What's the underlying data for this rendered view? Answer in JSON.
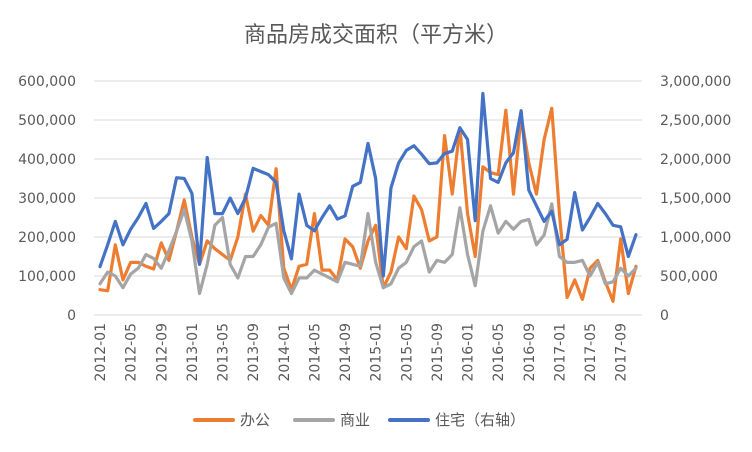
{
  "chart_data": {
    "type": "line",
    "title": "商品房成交面积（平方米）",
    "xlabel": "",
    "ylabel": "",
    "x": [
      "2012-01",
      "2012-02",
      "2012-03",
      "2012-04",
      "2012-05",
      "2012-06",
      "2012-07",
      "2012-08",
      "2012-09",
      "2012-10",
      "2012-11",
      "2012-12",
      "2013-01",
      "2013-02",
      "2013-03",
      "2013-04",
      "2013-05",
      "2013-06",
      "2013-07",
      "2013-08",
      "2013-09",
      "2013-10",
      "2013-11",
      "2013-12",
      "2014-01",
      "2014-02",
      "2014-03",
      "2014-04",
      "2014-05",
      "2014-06",
      "2014-07",
      "2014-08",
      "2014-09",
      "2014-10",
      "2014-11",
      "2014-12",
      "2015-01",
      "2015-02",
      "2015-03",
      "2015-04",
      "2015-05",
      "2015-06",
      "2015-07",
      "2015-08",
      "2015-09",
      "2015-10",
      "2015-11",
      "2015-12",
      "2016-01",
      "2016-02",
      "2016-03",
      "2016-04",
      "2016-05",
      "2016-06",
      "2016-07",
      "2016-08",
      "2016-09",
      "2016-10",
      "2016-11",
      "2016-12",
      "2017-01",
      "2017-02",
      "2017-03",
      "2017-04",
      "2017-05",
      "2017-06",
      "2017-07",
      "2017-08",
      "2017-09",
      "2017-10",
      "2017-11"
    ],
    "x_tick_labels": [
      "2012-01",
      "2012-05",
      "2012-09",
      "2013-01",
      "2013-05",
      "2013-09",
      "2014-01",
      "2014-05",
      "2014-09",
      "2015-01",
      "2015-05",
      "2015-09",
      "2016-01",
      "2016-05",
      "2016-09",
      "2017-01",
      "2017-05",
      "2017-09"
    ],
    "y_left": {
      "ylim": [
        0,
        600000
      ],
      "ticks": [
        "0",
        "100,000",
        "200,000",
        "300,000",
        "400,000",
        "500,000",
        "600,000"
      ]
    },
    "y_right": {
      "ylim": [
        0,
        3000000
      ],
      "ticks": [
        "0",
        "500,000",
        "1,000,000",
        "1,500,000",
        "2,000,000",
        "2,500,000",
        "3,000,000"
      ]
    },
    "legend_position": "bottom",
    "series": [
      {
        "name": "办公",
        "axis": "left",
        "color": "#ED7D31",
        "values": [
          65000,
          62000,
          180000,
          90000,
          135000,
          135000,
          125000,
          118000,
          185000,
          140000,
          215000,
          295000,
          200000,
          130000,
          190000,
          170000,
          155000,
          140000,
          200000,
          310000,
          215000,
          255000,
          230000,
          375000,
          120000,
          65000,
          125000,
          130000,
          260000,
          115000,
          115000,
          90000,
          195000,
          175000,
          120000,
          190000,
          230000,
          70000,
          110000,
          200000,
          170000,
          305000,
          270000,
          190000,
          200000,
          460000,
          310000,
          480000,
          260000,
          150000,
          380000,
          365000,
          360000,
          525000,
          310000,
          510000,
          390000,
          310000,
          450000,
          530000,
          260000,
          45000,
          90000,
          40000,
          120000,
          140000,
          85000,
          35000,
          195000,
          55000,
          125000
        ]
      },
      {
        "name": "商业",
        "axis": "left",
        "color": "#A5A5A5",
        "values": [
          80000,
          110000,
          100000,
          70000,
          105000,
          120000,
          155000,
          145000,
          120000,
          165000,
          215000,
          270000,
          190000,
          55000,
          130000,
          230000,
          250000,
          130000,
          95000,
          150000,
          150000,
          180000,
          225000,
          235000,
          95000,
          55000,
          95000,
          95000,
          115000,
          105000,
          95000,
          85000,
          135000,
          130000,
          125000,
          260000,
          135000,
          70000,
          80000,
          120000,
          135000,
          175000,
          190000,
          110000,
          140000,
          135000,
          155000,
          275000,
          155000,
          75000,
          215000,
          280000,
          210000,
          240000,
          220000,
          240000,
          245000,
          180000,
          205000,
          285000,
          150000,
          135000,
          135000,
          140000,
          100000,
          135000,
          80000,
          85000,
          120000,
          100000,
          120000
        ]
      },
      {
        "name": "住宅（右轴）",
        "axis": "right",
        "color": "#4472C4",
        "values": [
          620000,
          900000,
          1200000,
          900000,
          1100000,
          1250000,
          1430000,
          1110000,
          1200000,
          1300000,
          1760000,
          1750000,
          1560000,
          650000,
          2020000,
          1300000,
          1300000,
          1500000,
          1300000,
          1500000,
          1880000,
          1840000,
          1800000,
          1700000,
          1080000,
          720000,
          1550000,
          1150000,
          1080000,
          1250000,
          1400000,
          1230000,
          1270000,
          1650000,
          1700000,
          2200000,
          1750000,
          500000,
          1630000,
          1950000,
          2110000,
          2170000,
          2060000,
          1940000,
          1950000,
          2070000,
          2100000,
          2400000,
          2250000,
          1210000,
          2840000,
          1750000,
          1700000,
          1950000,
          2080000,
          2620000,
          1600000,
          1400000,
          1200000,
          1330000,
          900000,
          970000,
          1570000,
          1090000,
          1250000,
          1430000,
          1300000,
          1150000,
          1130000,
          750000,
          1030000
        ]
      }
    ]
  }
}
